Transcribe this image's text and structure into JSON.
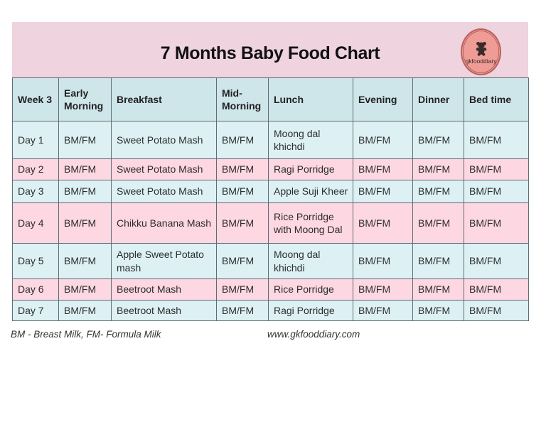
{
  "header": {
    "title": "7 Months Baby Food Chart",
    "logo_text": "gkfooddiary"
  },
  "table": {
    "columns": [
      "Week 3",
      "Early Morning",
      "Breakfast",
      "Mid-Morning",
      "Lunch",
      "Evening",
      "Dinner",
      "Bed time"
    ],
    "rows": [
      [
        "Day 1",
        "BM/FM",
        "Sweet Potato Mash",
        "BM/FM",
        "Moong dal khichdi",
        "BM/FM",
        "BM/FM",
        "BM/FM"
      ],
      [
        "Day 2",
        "BM/FM",
        "Sweet Potato Mash",
        "BM/FM",
        "Ragi Porridge",
        "BM/FM",
        "BM/FM",
        "BM/FM"
      ],
      [
        "Day 3",
        "BM/FM",
        "Sweet Potato Mash",
        "BM/FM",
        "Apple Suji Kheer",
        "BM/FM",
        "BM/FM",
        "BM/FM"
      ],
      [
        "Day 4",
        "BM/FM",
        "Chikku Banana Mash",
        "BM/FM",
        "Rice Porridge with Moong Dal",
        "BM/FM",
        "BM/FM",
        "BM/FM"
      ],
      [
        "Day 5",
        "BM/FM",
        "Apple Sweet Potato mash",
        "BM/FM",
        "Moong dal khichdi",
        "BM/FM",
        "BM/FM",
        "BM/FM"
      ],
      [
        "Day 6",
        "BM/FM",
        "Beetroot Mash",
        "BM/FM",
        "Rice Porridge",
        "BM/FM",
        "BM/FM",
        "BM/FM"
      ],
      [
        "Day 7",
        "BM/FM",
        "Beetroot Mash",
        "BM/FM",
        "Ragi Porridge",
        "BM/FM",
        "BM/FM",
        "BM/FM"
      ]
    ]
  },
  "footer": {
    "legend": "BM - Breast Milk, FM- Formula Milk",
    "website": "www.gkfooddiary.com"
  },
  "colors": {
    "band": "#efd3df",
    "table_header": "#cee5ea",
    "row_blue": "#ddf1f5",
    "row_pink": "#fdd7e1",
    "logo_fill": "#ef9c96",
    "logo_ring": "#b8625d",
    "border": "#5f6d73",
    "text": "#2d2d2d"
  }
}
